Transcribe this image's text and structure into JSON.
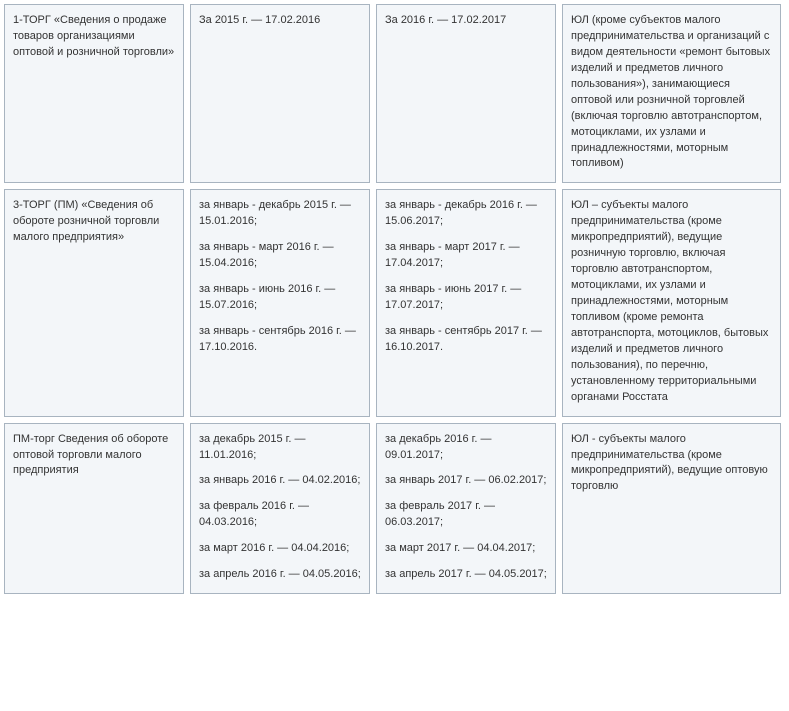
{
  "rows": [
    {
      "c0": [
        "1-ТОРГ «Сведения о продаже товаров организациями оптовой и розничной торговли»"
      ],
      "c1": [
        "За 2015 г. — 17.02.2016"
      ],
      "c2": [
        "За 2016 г. — 17.02.2017"
      ],
      "c3": [
        "ЮЛ (кроме субъектов малого предпринимательства и организаций с видом деятельности «ремонт бытовых изделий и предметов личного пользования»), занимающиеся оптовой или розничной торговлей (включая торговлю автотранспортом, мотоциклами, их узлами и принадлежностями, моторным топливом)"
      ]
    },
    {
      "c0": [
        "3-ТОРГ (ПМ) «Сведения об обороте розничной торговли малого предприятия»"
      ],
      "c1": [
        "за январь - декабрь 2015 г. — 15.01.2016;",
        "за январь - март 2016 г. — 15.04.2016;",
        "за январь - июнь 2016 г. — 15.07.2016;",
        "за январь - сентябрь 2016 г. — 17.10.2016."
      ],
      "c2": [
        "за январь - декабрь 2016 г. — 15.06.2017;",
        "за январь - март 2017 г. — 17.04.2017;",
        "за январь - июнь 2017 г. — 17.07.2017;",
        "за январь - сентябрь 2017 г. — 16.10.2017."
      ],
      "c3": [
        "ЮЛ – субъекты малого предпринимательства (кроме микропредприятий), ведущие розничную торговлю, включая торговлю автотранспортом, мотоциклами, их узлами и принадлежностями, моторным топливом (кроме ремонта автотранспорта, мотоциклов, бытовых изделий и предметов личного пользования), по перечню, установленному территориальными органами Росстата"
      ]
    },
    {
      "c0": [
        "ПМ-торг Сведения об обороте оптовой торговли малого предприятия"
      ],
      "c1": [
        "за декабрь 2015 г. — 11.01.2016;",
        "за январь 2016 г. — 04.02.2016;",
        "за февраль 2016 г. — 04.03.2016;",
        "за март 2016 г. — 04.04.2016;",
        "за апрель 2016 г. — 04.05.2016;"
      ],
      "c2": [
        "за декабрь 2016 г. — 09.01.2017;",
        "за январь 2017 г. — 06.02.2017;",
        "за февраль 2017 г. — 06.03.2017;",
        "за март 2017 г. — 04.04.2017;",
        "за апрель 2017 г. — 04.05.2017;"
      ],
      "c3": [
        "ЮЛ - субъекты малого предпринимательства (кроме микропредприятий), ведущие оптовую торговлю"
      ]
    }
  ]
}
